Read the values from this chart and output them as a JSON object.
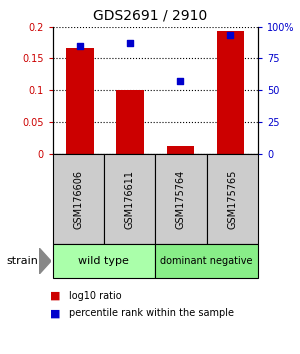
{
  "title": "GDS2691 / 2910",
  "samples": [
    "GSM176606",
    "GSM176611",
    "GSM175764",
    "GSM175765"
  ],
  "log10_ratio": [
    0.167,
    0.101,
    0.012,
    0.193
  ],
  "percentile_rank": [
    0.85,
    0.87,
    0.57,
    0.93
  ],
  "bar_color": "#cc0000",
  "dot_color": "#0000cc",
  "ylim_left": [
    0,
    0.2
  ],
  "ylim_right": [
    0,
    1.0
  ],
  "yticks_left": [
    0,
    0.05,
    0.1,
    0.15,
    0.2
  ],
  "ytick_labels_left": [
    "0",
    "0.05",
    "0.1",
    "0.15",
    "0.2"
  ],
  "yticks_right": [
    0,
    0.25,
    0.5,
    0.75,
    1.0
  ],
  "ytick_labels_right": [
    "0",
    "25",
    "50",
    "75",
    "100%"
  ],
  "groups": [
    {
      "label": "wild type",
      "samples": [
        0,
        1
      ],
      "color": "#aaffaa"
    },
    {
      "label": "dominant negative",
      "samples": [
        2,
        3
      ],
      "color": "#88ee88"
    }
  ],
  "strain_label": "strain",
  "legend_bar_label": "log10 ratio",
  "legend_dot_label": "percentile rank within the sample",
  "background_label_row": "#cccccc",
  "group_colors": [
    "#aaffaa",
    "#88ee88"
  ]
}
